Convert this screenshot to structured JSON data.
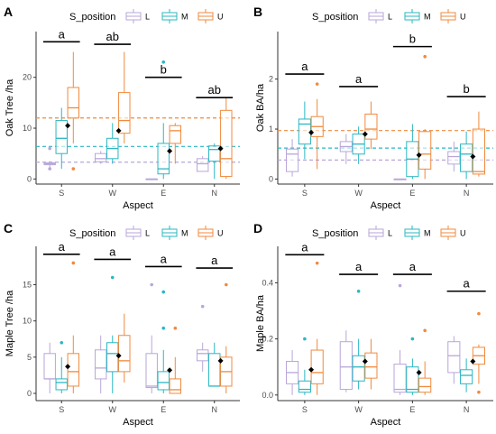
{
  "colors": {
    "L": "#b8a6d9",
    "M": "#2ab7c2",
    "U": "#f08a3e",
    "mean": "#000000",
    "axis": "#333333",
    "sig_bar": "#000000"
  },
  "legend_title": "S_position",
  "legend_items": [
    "L",
    "M",
    "U"
  ],
  "chart_data": [
    {
      "panel": "A",
      "type": "box",
      "xlabel": "Aspect",
      "ylabel": "Oak Tree /ha",
      "categories": [
        "S",
        "W",
        "E",
        "N"
      ],
      "ylim": [
        -1,
        29
      ],
      "yticks": [
        0,
        10,
        20
      ],
      "groups": [
        "L",
        "M",
        "U"
      ],
      "boxes": {
        "L": [
          {
            "min": 2,
            "q1": 2.8,
            "median": 3,
            "q3": 3.2,
            "max": 3.5,
            "outliers": [
              2,
              6
            ]
          },
          {
            "min": 3,
            "q1": 3.4,
            "median": 4,
            "q3": 5,
            "max": 5.5,
            "outliers": []
          },
          {
            "min": 0,
            "q1": 0,
            "median": 0,
            "q3": 0,
            "max": 0,
            "outliers": []
          },
          {
            "min": 1.5,
            "q1": 1.5,
            "median": 3,
            "q3": 4,
            "max": 4.5,
            "outliers": []
          }
        ],
        "M": [
          {
            "min": 2,
            "q1": 5,
            "median": 8,
            "q3": 11.5,
            "max": 14,
            "outliers": []
          },
          {
            "min": 3,
            "q1": 4,
            "median": 6,
            "q3": 8,
            "max": 11,
            "outliers": []
          },
          {
            "min": 0,
            "q1": 1,
            "median": 2,
            "q3": 7,
            "max": 11,
            "outliers": [
              23
            ]
          },
          {
            "min": 0,
            "q1": 3.5,
            "median": 5.8,
            "q3": 6.5,
            "max": 7,
            "outliers": []
          }
        ],
        "U": [
          {
            "min": 7,
            "q1": 12,
            "median": 14,
            "q3": 18,
            "max": 25,
            "outliers": [
              2
            ]
          },
          {
            "min": 7,
            "q1": 9,
            "median": 11.5,
            "q3": 17,
            "max": 25,
            "outliers": []
          },
          {
            "min": 3,
            "q1": 7,
            "median": 9.5,
            "q3": 10.5,
            "max": 11,
            "outliers": []
          },
          {
            "min": 0,
            "q1": 0.5,
            "median": 4,
            "q3": 13.5,
            "max": 16,
            "outliers": []
          }
        ]
      },
      "means": [
        10.5,
        9.5,
        5.5,
        6
      ],
      "hlines": {
        "L": 3.3,
        "M": 6.4,
        "U": 12
      },
      "sig": [
        {
          "label": "a",
          "y": 27
        },
        {
          "label": "ab",
          "y": 26.5
        },
        {
          "label": "b",
          "y": 20
        },
        {
          "label": "ab",
          "y": 16
        }
      ]
    },
    {
      "panel": "B",
      "type": "box",
      "xlabel": "Aspect",
      "ylabel": "Oak BA/ha",
      "categories": [
        "S",
        "W",
        "E",
        "N"
      ],
      "ylim": [
        -0.1,
        2.95
      ],
      "yticks": [
        0,
        1,
        2
      ],
      "groups": [
        "L",
        "M",
        "U"
      ],
      "boxes": {
        "L": [
          {
            "min": 0.05,
            "q1": 0.15,
            "median": 0.5,
            "q3": 0.6,
            "max": 0.8,
            "outliers": []
          },
          {
            "min": 0.3,
            "q1": 0.55,
            "median": 0.65,
            "q3": 0.75,
            "max": 0.9,
            "outliers": []
          },
          {
            "min": 0,
            "q1": 0,
            "median": 0,
            "q3": 0,
            "max": 0,
            "outliers": []
          },
          {
            "min": 0.15,
            "q1": 0.3,
            "median": 0.45,
            "q3": 0.55,
            "max": 0.75,
            "outliers": []
          }
        ],
        "M": [
          {
            "min": 0.4,
            "q1": 0.7,
            "median": 1.1,
            "q3": 1.2,
            "max": 1.55,
            "outliers": []
          },
          {
            "min": 0.3,
            "q1": 0.5,
            "median": 0.7,
            "q3": 0.9,
            "max": 1.05,
            "outliers": []
          },
          {
            "min": 0,
            "q1": 0.05,
            "median": 0.4,
            "q3": 0.75,
            "max": 1.1,
            "outliers": []
          },
          {
            "min": 0,
            "q1": 0.15,
            "median": 0.5,
            "q3": 0.7,
            "max": 0.95,
            "outliers": []
          }
        ],
        "U": [
          {
            "min": 0.2,
            "q1": 0.85,
            "median": 1.05,
            "q3": 1.25,
            "max": 1.6,
            "outliers": [
              1.9
            ]
          },
          {
            "min": 0.6,
            "q1": 0.8,
            "median": 1.0,
            "q3": 1.3,
            "max": 1.55,
            "outliers": []
          },
          {
            "min": 0,
            "q1": 0.2,
            "median": 0.5,
            "q3": 0.95,
            "max": 1.0,
            "outliers": [
              2.45
            ]
          },
          {
            "min": 0.05,
            "q1": 0.1,
            "median": 0.15,
            "q3": 1.0,
            "max": 1.35,
            "outliers": []
          }
        ]
      },
      "means": [
        0.93,
        0.9,
        0.48,
        0.45
      ],
      "hlines": {
        "L": 0.38,
        "M": 0.62,
        "U": 0.97
      },
      "sig": [
        {
          "label": "a",
          "y": 2.1
        },
        {
          "label": "a",
          "y": 1.85
        },
        {
          "label": "b",
          "y": 2.65
        },
        {
          "label": "b",
          "y": 1.65
        }
      ]
    },
    {
      "panel": "C",
      "type": "box",
      "xlabel": "Aspect",
      "ylabel": "Maple Tree /ha",
      "categories": [
        "S",
        "W",
        "E",
        "N"
      ],
      "ylim": [
        -1,
        20.3
      ],
      "yticks": [
        0,
        5,
        10,
        15
      ],
      "groups": [
        "L",
        "M",
        "U"
      ],
      "boxes": {
        "L": [
          {
            "min": 0,
            "q1": 2,
            "median": 2,
            "q3": 5.5,
            "max": 7,
            "outliers": []
          },
          {
            "min": 0,
            "q1": 2,
            "median": 3.5,
            "q3": 6,
            "max": 8,
            "outliers": []
          },
          {
            "min": 0,
            "q1": 0.8,
            "median": 1,
            "q3": 5.5,
            "max": 8,
            "outliers": [
              15
            ]
          },
          {
            "min": 3,
            "q1": 4.5,
            "median": 5.5,
            "q3": 6,
            "max": 7,
            "outliers": [
              12
            ]
          }
        ],
        "M": [
          {
            "min": 0,
            "q1": 0.5,
            "median": 1.5,
            "q3": 2,
            "max": 5,
            "outliers": [
              7
            ]
          },
          {
            "min": 0,
            "q1": 3,
            "median": 5.5,
            "q3": 7,
            "max": 8,
            "outliers": [
              16
            ]
          },
          {
            "min": 0,
            "q1": 0.5,
            "median": 1.5,
            "q3": 3,
            "max": 6,
            "outliers": [
              9,
              14
            ]
          },
          {
            "min": 1,
            "q1": 1,
            "median": 1,
            "q3": 5.5,
            "max": 7,
            "outliers": []
          }
        ],
        "U": [
          {
            "min": 0,
            "q1": 1,
            "median": 3,
            "q3": 5.5,
            "max": 8,
            "outliers": [
              18
            ]
          },
          {
            "min": 1.5,
            "q1": 3,
            "median": 4.5,
            "q3": 8,
            "max": 11,
            "outliers": []
          },
          {
            "min": 0,
            "q1": 0,
            "median": 0.5,
            "q3": 2,
            "max": 5,
            "outliers": [
              9
            ]
          },
          {
            "min": 0,
            "q1": 1,
            "median": 3,
            "q3": 5,
            "max": 6.5,
            "outliers": [
              15
            ]
          }
        ]
      },
      "means": [
        3.7,
        5.2,
        3.2,
        4.5
      ],
      "hlines": {},
      "sig": [
        {
          "label": "a",
          "y": 19.2
        },
        {
          "label": "a",
          "y": 18.5
        },
        {
          "label": "a",
          "y": 17.5
        },
        {
          "label": "a",
          "y": 17.3
        }
      ]
    },
    {
      "panel": "D",
      "type": "box",
      "xlabel": "Aspect",
      "ylabel": "Maple BA/ha",
      "categories": [
        "S",
        "W",
        "E",
        "N"
      ],
      "ylim": [
        -0.02,
        0.53
      ],
      "yticks": [
        0.0,
        0.2,
        0.4
      ],
      "groups": [
        "L",
        "M",
        "U"
      ],
      "boxes": {
        "L": [
          {
            "min": 0,
            "q1": 0.04,
            "median": 0.08,
            "q3": 0.12,
            "max": 0.16,
            "outliers": []
          },
          {
            "min": 0.01,
            "q1": 0.02,
            "median": 0.1,
            "q3": 0.19,
            "max": 0.23,
            "outliers": []
          },
          {
            "min": 0,
            "q1": 0.01,
            "median": 0.02,
            "q3": 0.11,
            "max": 0.16,
            "outliers": [
              0.39
            ]
          },
          {
            "min": 0.04,
            "q1": 0.08,
            "median": 0.14,
            "q3": 0.19,
            "max": 0.21,
            "outliers": []
          }
        ],
        "M": [
          {
            "min": 0,
            "q1": 0.01,
            "median": 0.02,
            "q3": 0.05,
            "max": 0.09,
            "outliers": [
              0.2
            ]
          },
          {
            "min": 0.02,
            "q1": 0.05,
            "median": 0.1,
            "q3": 0.14,
            "max": 0.2,
            "outliers": [
              0.37
            ]
          },
          {
            "min": 0,
            "q1": 0.01,
            "median": 0.02,
            "q3": 0.1,
            "max": 0.13,
            "outliers": [
              0.2
            ]
          },
          {
            "min": 0.01,
            "q1": 0.04,
            "median": 0.07,
            "q3": 0.09,
            "max": 0.13,
            "outliers": []
          }
        ],
        "U": [
          {
            "min": 0,
            "q1": 0.04,
            "median": 0.08,
            "q3": 0.16,
            "max": 0.2,
            "outliers": [
              0.47
            ]
          },
          {
            "min": 0.02,
            "q1": 0.06,
            "median": 0.1,
            "q3": 0.15,
            "max": 0.2,
            "outliers": []
          },
          {
            "min": 0,
            "q1": 0.01,
            "median": 0.03,
            "q3": 0.06,
            "max": 0.12,
            "outliers": [
              0.23
            ]
          },
          {
            "min": 0.04,
            "q1": 0.11,
            "median": 0.14,
            "q3": 0.17,
            "max": 0.18,
            "outliers": [
              0.01,
              0.29
            ]
          }
        ]
      },
      "means": [
        0.09,
        0.12,
        0.08,
        0.12
      ],
      "hlines": {},
      "sig": [
        {
          "label": "a",
          "y": 0.5
        },
        {
          "label": "a",
          "y": 0.43
        },
        {
          "label": "a",
          "y": 0.43
        },
        {
          "label": "a",
          "y": 0.37
        }
      ]
    }
  ]
}
